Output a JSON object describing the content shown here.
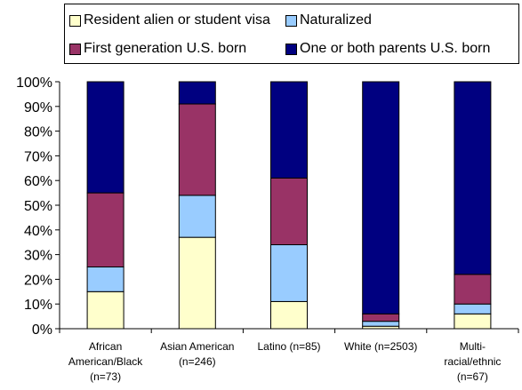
{
  "chart_data": {
    "type": "bar",
    "stacked": true,
    "categories": [
      [
        "African",
        "American/Black",
        "(n=73)"
      ],
      [
        "Asian American",
        "(n=246)"
      ],
      [
        "Latino (n=85)"
      ],
      [
        "White (n=2503)"
      ],
      [
        "Multi-",
        "racial/ethnic",
        "(n=67)"
      ]
    ],
    "series": [
      {
        "name": "Resident alien or student visa",
        "color": "#FFFFCC",
        "values": [
          15,
          37,
          11,
          1,
          6
        ]
      },
      {
        "name": "Naturalized",
        "color": "#99CCFF",
        "values": [
          10,
          17,
          23,
          2,
          4
        ]
      },
      {
        "name": "First generation U.S. born",
        "color": "#993366",
        "values": [
          30,
          37,
          27,
          3,
          12
        ]
      },
      {
        "name": "One or both parents U.S. born",
        "color": "#000080",
        "values": [
          45,
          9,
          39,
          94,
          78
        ]
      }
    ],
    "yticks": [
      "0%",
      "10%",
      "20%",
      "30%",
      "40%",
      "50%",
      "60%",
      "70%",
      "80%",
      "90%",
      "100%"
    ],
    "ylim": [
      0,
      100
    ],
    "legend_position": "top",
    "grid": false
  }
}
